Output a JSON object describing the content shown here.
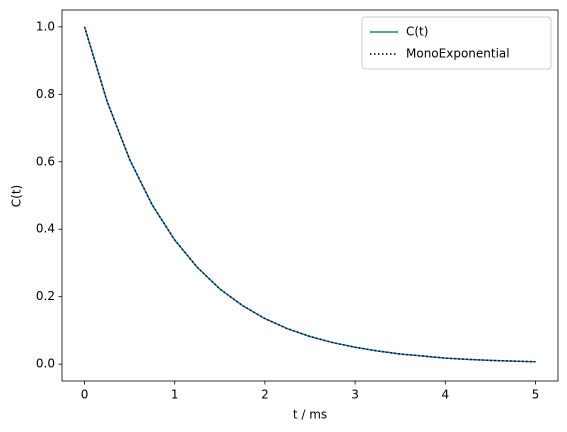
{
  "chart_data": {
    "type": "line",
    "xlabel": "t / ms",
    "ylabel": "C(t)",
    "x": [
      0,
      0.25,
      0.5,
      0.75,
      1,
      1.25,
      1.5,
      1.75,
      2,
      2.25,
      2.5,
      2.75,
      3,
      3.25,
      3.5,
      3.75,
      4,
      4.25,
      4.5,
      4.75,
      5
    ],
    "series": [
      {
        "name": "C(t)",
        "color": "#1f77b4",
        "linestyle": "solid",
        "values": [
          1.0,
          0.779,
          0.607,
          0.472,
          0.368,
          0.287,
          0.223,
          0.174,
          0.135,
          0.105,
          0.082,
          0.064,
          0.05,
          0.039,
          0.03,
          0.024,
          0.018,
          0.014,
          0.011,
          0.009,
          0.007
        ]
      },
      {
        "name": "MonoExponential",
        "color": "#000000",
        "linestyle": "dotted",
        "values": [
          1.0,
          0.779,
          0.607,
          0.472,
          0.368,
          0.287,
          0.223,
          0.174,
          0.135,
          0.105,
          0.082,
          0.064,
          0.05,
          0.039,
          0.03,
          0.024,
          0.018,
          0.014,
          0.011,
          0.009,
          0.007
        ]
      }
    ],
    "xlim": [
      -0.25,
      5.25
    ],
    "xticks": [
      0,
      1,
      2,
      3,
      4,
      5
    ],
    "ylim": [
      -0.05,
      1.05
    ],
    "yticks": [
      {
        "value": 0,
        "label": "0.0"
      },
      0.2,
      0.4,
      0.6,
      0.8,
      {
        "value": 1,
        "label": "1.0"
      }
    ],
    "grid": false,
    "legend": "upper right"
  }
}
